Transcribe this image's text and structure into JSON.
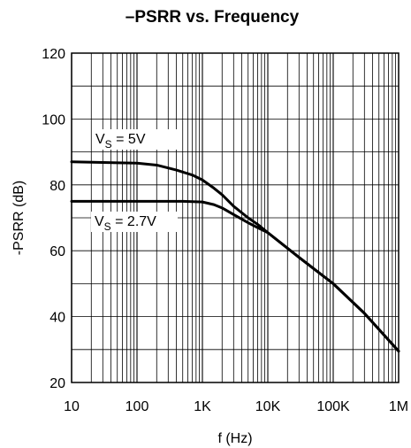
{
  "chart_data": {
    "type": "line",
    "title": "–PSRR vs. Frequency",
    "xlabel": "f (Hz)",
    "ylabel": "-PSRR (dB)",
    "xscale": "log",
    "xlim": [
      10,
      1000000
    ],
    "ylim": [
      20,
      120
    ],
    "grid": true,
    "x_ticks": [
      {
        "value": 10,
        "label": "10"
      },
      {
        "value": 100,
        "label": "100"
      },
      {
        "value": 1000,
        "label": "1K"
      },
      {
        "value": 10000,
        "label": "10K"
      },
      {
        "value": 100000,
        "label": "100K"
      },
      {
        "value": 1000000,
        "label": "1M"
      }
    ],
    "y_ticks": [
      {
        "value": 20,
        "label": "20"
      },
      {
        "value": 40,
        "label": "40"
      },
      {
        "value": 60,
        "label": "60"
      },
      {
        "value": 80,
        "label": "80"
      },
      {
        "value": 100,
        "label": "100"
      },
      {
        "value": 120,
        "label": "120"
      }
    ],
    "series": [
      {
        "id": "vs5",
        "points": [
          [
            10,
            87
          ],
          [
            30,
            86.8
          ],
          [
            100,
            86.6
          ],
          [
            200,
            86
          ],
          [
            400,
            84.5
          ],
          [
            700,
            83
          ],
          [
            1000,
            81.5
          ],
          [
            1500,
            79
          ],
          [
            2000,
            77
          ],
          [
            3000,
            73.5
          ],
          [
            5000,
            70
          ],
          [
            7000,
            68
          ],
          [
            10000,
            65.5
          ],
          [
            30000,
            58
          ],
          [
            100000,
            50
          ],
          [
            300000,
            41
          ],
          [
            1000000,
            29.5
          ]
        ]
      },
      {
        "id": "vs27",
        "points": [
          [
            10,
            75
          ],
          [
            100,
            75
          ],
          [
            500,
            75
          ],
          [
            1000,
            74.8
          ],
          [
            1500,
            74
          ],
          [
            2000,
            73
          ],
          [
            3000,
            71
          ],
          [
            5000,
            68.5
          ],
          [
            7000,
            67
          ],
          [
            10000,
            65.5
          ],
          [
            30000,
            58
          ],
          [
            100000,
            50
          ],
          [
            300000,
            41
          ],
          [
            1000000,
            29.5
          ]
        ]
      }
    ],
    "annotations": [
      {
        "id": "vs5",
        "main": "V",
        "sub": "S",
        "rest": " = 5V"
      },
      {
        "id": "vs27",
        "main": "V",
        "sub": "S",
        "rest": " = 2.7V"
      }
    ]
  }
}
